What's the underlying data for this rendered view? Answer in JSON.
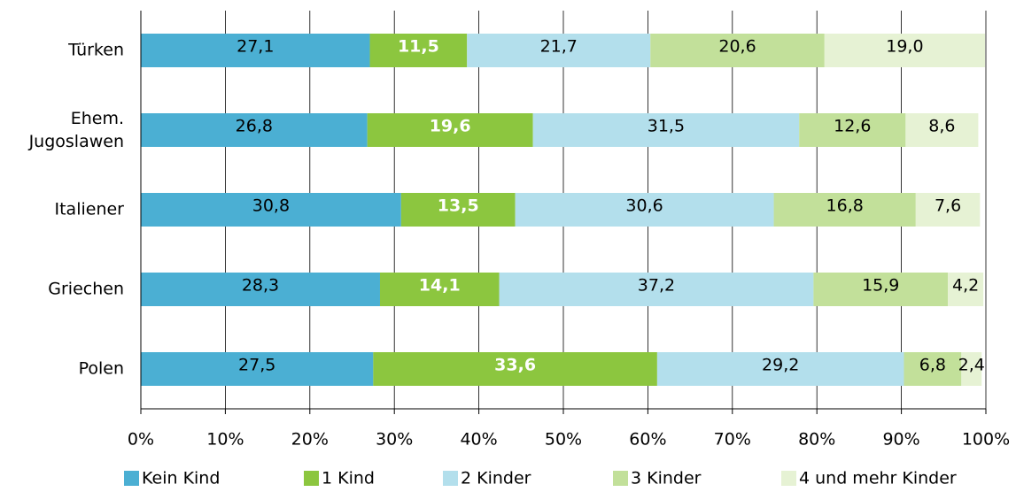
{
  "chart_data": {
    "type": "stacked_bar_horizontal",
    "categories": [
      "Türken",
      "Ehem. Jugoslawen",
      "Italiener",
      "Griechen",
      "Polen"
    ],
    "series": [
      {
        "name": "Kein Kind",
        "color": "#4bafd3",
        "label_color": "#000000",
        "values": [
          27.1,
          26.8,
          30.8,
          28.3,
          27.5
        ],
        "value_labels": [
          "27,1",
          "26,8",
          "30,8",
          "28,3",
          "27,5"
        ]
      },
      {
        "name": "1 Kind",
        "color": "#8cc63f",
        "label_color": "#ffffff",
        "values": [
          11.5,
          19.6,
          13.5,
          14.1,
          33.6
        ],
        "value_labels": [
          "11,5",
          "19,6",
          "13,5",
          "14,1",
          "33,6"
        ]
      },
      {
        "name": "2 Kinder",
        "color": "#b3dfec",
        "label_color": "#000000",
        "values": [
          21.7,
          31.5,
          30.6,
          37.2,
          29.2
        ],
        "value_labels": [
          "21,7",
          "31,5",
          "30,6",
          "37,2",
          "29,2"
        ]
      },
      {
        "name": "3 Kinder",
        "color": "#c2e09a",
        "label_color": "#000000",
        "values": [
          20.6,
          12.6,
          16.8,
          15.9,
          6.8
        ],
        "value_labels": [
          "20,6",
          "12,6",
          "16,8",
          "15,9",
          "6,8"
        ]
      },
      {
        "name": "4 und mehr Kinder",
        "color": "#e6f2d4",
        "label_color": "#000000",
        "values": [
          19.0,
          8.6,
          7.6,
          4.2,
          2.4
        ],
        "value_labels": [
          "19,0",
          "8,6",
          "7,6",
          "4,2",
          "2,4"
        ]
      }
    ],
    "xlim": [
      0,
      100
    ],
    "xticks": [
      {
        "value": 0,
        "label": "0%"
      },
      {
        "value": 10,
        "label": "10%"
      },
      {
        "value": 20,
        "label": "20%"
      },
      {
        "value": 30,
        "label": "30%"
      },
      {
        "value": 40,
        "label": "40%"
      },
      {
        "value": 50,
        "label": "50%"
      },
      {
        "value": 60,
        "label": "60%"
      },
      {
        "value": 70,
        "label": "70%"
      },
      {
        "value": 80,
        "label": "80%"
      },
      {
        "value": 90,
        "label": "90%"
      },
      {
        "value": 100,
        "label": "100%"
      }
    ],
    "grid": true,
    "legend": "bottom"
  }
}
